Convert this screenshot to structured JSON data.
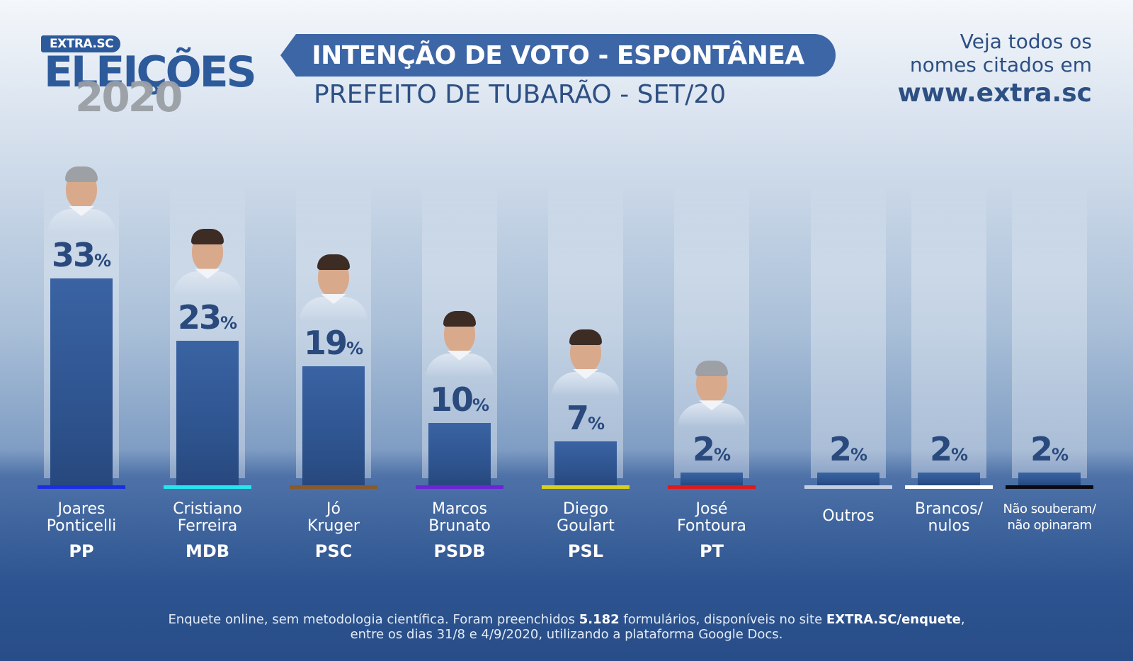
{
  "logo": {
    "brand": "EXTRA.SC",
    "word": "ELEIÇÕES",
    "year": "2020"
  },
  "header": {
    "title": "INTENÇÃO DE VOTO - ESPONTÂNEA",
    "subtitle": "PREFEITO DE TUBARÃO - SET/20"
  },
  "promo": {
    "line1": "Veja todos os",
    "line2": "nomes citados em",
    "url": "www.extra.sc"
  },
  "chart_data": {
    "type": "bar",
    "title": "INTENÇÃO DE VOTO - ESPONTÂNEA",
    "subtitle": "PREFEITO DE TUBARÃO - SET/20",
    "unit": "%",
    "ylim": [
      0,
      33
    ],
    "grid": false,
    "categories": [
      "Joares Ponticelli",
      "Cristiano Ferreira",
      "Jó Kruger",
      "Marcos Brunato",
      "Diego Goulart",
      "José Fontoura",
      "Outros",
      "Brancos/ nulos",
      "Não souberam/ não opinaram"
    ],
    "values": [
      33,
      23,
      19,
      10,
      7,
      2,
      2,
      2,
      2
    ],
    "items": [
      {
        "line1": "Joares",
        "line2": "Ponticelli",
        "party": "PP",
        "value": 33,
        "party_color": "#1b2fe0",
        "photo": "candidate-portrait"
      },
      {
        "line1": "Cristiano",
        "line2": "Ferreira",
        "party": "MDB",
        "value": 23,
        "party_color": "#25e6f0",
        "photo": "candidate-portrait"
      },
      {
        "line1": "Jó",
        "line2": "Kruger",
        "party": "PSC",
        "value": 19,
        "party_color": "#8a5a2b",
        "photo": "candidate-portrait"
      },
      {
        "line1": "Marcos",
        "line2": "Brunato",
        "party": "PSDB",
        "value": 10,
        "party_color": "#6d25d6",
        "photo": "candidate-portrait"
      },
      {
        "line1": "Diego",
        "line2": "Goulart",
        "party": "PSL",
        "value": 7,
        "party_color": "#d8d020",
        "photo": "candidate-portrait"
      },
      {
        "line1": "José",
        "line2": "Fontoura",
        "party": "PT",
        "value": 2,
        "party_color": "#e01a1a",
        "photo": "candidate-portrait"
      },
      {
        "line1": "Outros",
        "line2": "",
        "party": "",
        "value": 2,
        "party_color": "#c2cfe2"
      },
      {
        "line1": "Brancos/",
        "line2": "nulos",
        "party": "",
        "value": 2,
        "party_color": "#ffffff"
      },
      {
        "line1": "Não souberam/",
        "line2": "não opinaram",
        "party": "",
        "value": 2,
        "party_color": "#0a0a12"
      }
    ]
  },
  "footnote": {
    "p1": "Enquete online, sem metodologia científica. Foram preenchidos ",
    "count": "5.182",
    "p2": " formulários, disponíveis no site ",
    "site": "EXTRA.SC/enquete",
    "p3": ",",
    "line2": "entre os dias 31/8 e 4/9/2020, utilizando a plataforma Google Docs."
  }
}
